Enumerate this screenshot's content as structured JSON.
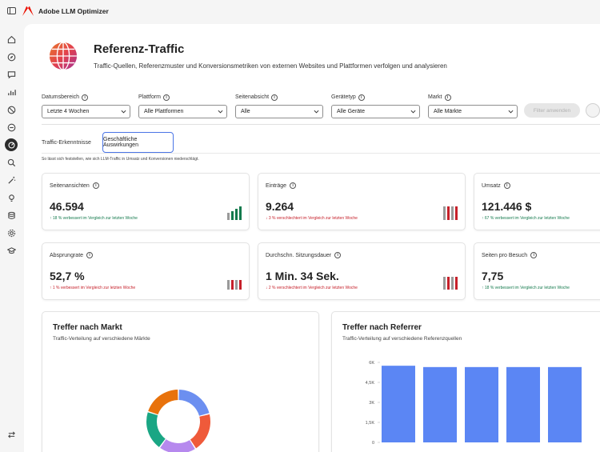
{
  "app": {
    "title": "Adobe LLM Optimizer"
  },
  "page": {
    "title": "Referenz-Traffic",
    "subtitle": "Traffic-Quellen, Referenzmuster und Konversionsmetriken von externen Websites und Plattformen verfolgen und analysieren"
  },
  "filters": [
    {
      "label": "Datumsbereich",
      "value": "Letzte 4 Wochen"
    },
    {
      "label": "Plattform",
      "value": "Alle Plattformen"
    },
    {
      "label": "Seitenabsicht",
      "value": "Alle"
    },
    {
      "label": "Gerätetyp",
      "value": "Alle Geräte"
    },
    {
      "label": "Markt",
      "value": "Alle Märkte"
    }
  ],
  "apply_label": "Filter anwenden",
  "tabs": [
    "Traffic-Erkenntnisse",
    "Geschäftliche Auswirkungen"
  ],
  "description": "So lässt sich feststellen, wie sich LLM-Traffic in Umsatz und Konversionen niederschlägt.",
  "metrics": [
    {
      "label": "Seitenansichten",
      "value": "46.594",
      "delta": "↑ 18 % verbessert im Vergleich zur letzten Woche",
      "trend": "up",
      "spark_color": "#147a4d"
    },
    {
      "label": "Einträge",
      "value": "9.264",
      "delta": "↓ 3 % verschlechtert im Vergleich zur letzten Woche",
      "trend": "down",
      "spark_color": "#c6202a"
    },
    {
      "label": "Umsatz",
      "value": "121.446 $",
      "delta": "↑ 67 % verbessert im Vergleich zur letzten Woche",
      "trend": "up",
      "spark_color": "#147a4d"
    },
    {
      "label": "Absprungrate",
      "value": "52,7 %",
      "delta": "↑ 1 % verbessert im Vergleich zur letzten Woche",
      "trend": "down",
      "spark_color": "#c6202a"
    },
    {
      "label": "Durchschn. Sitzungsdauer",
      "value": "1 Min. 34 Sek.",
      "delta": "↓ 2 % verschlechtert im Vergleich zur letzten Woche",
      "trend": "down",
      "spark_color": "#c6202a"
    },
    {
      "label": "Seiten pro Besuch",
      "value": "7,75",
      "delta": "↑ 18 % verbessert im Vergleich zur letzten Woche",
      "trend": "up",
      "spark_color": "#147a4d"
    }
  ],
  "charts": {
    "market": {
      "title": "Treffer nach Markt",
      "subtitle": "Traffic-Verteilung auf verschiedene Märkte"
    },
    "referrer": {
      "title": "Treffer nach Referrer",
      "subtitle": "Traffic-Verteilung auf verschiedene Referenzquellen"
    }
  },
  "colors": {
    "accent": "#4b75e6",
    "bar": "#5b86f4",
    "positive": "#147a4d",
    "negative": "#c6202a",
    "brand": "#eb1000"
  },
  "chart_data": [
    {
      "type": "pie",
      "title": "Treffer nach Markt",
      "subtitle": "Traffic-Verteilung auf verschiedene Märkte",
      "slices": [
        {
          "color": "#6c8ff0",
          "value": 21
        },
        {
          "color": "#ef5a3a",
          "value": 20
        },
        {
          "color": "#b689ee",
          "value": 19
        },
        {
          "color": "#1aa684",
          "value": 20
        },
        {
          "color": "#e8720c",
          "value": 20
        }
      ]
    },
    {
      "type": "bar",
      "title": "Treffer nach Referrer",
      "subtitle": "Traffic-Verteilung auf verschiedene Referenzquellen",
      "yticks": [
        "6K",
        "4,5K",
        "3K",
        "1,5K",
        "0"
      ],
      "ylim": [
        0,
        6000
      ],
      "values": [
        5750,
        5650,
        5650,
        5650,
        5650
      ],
      "color": "#5b86f4"
    }
  ]
}
